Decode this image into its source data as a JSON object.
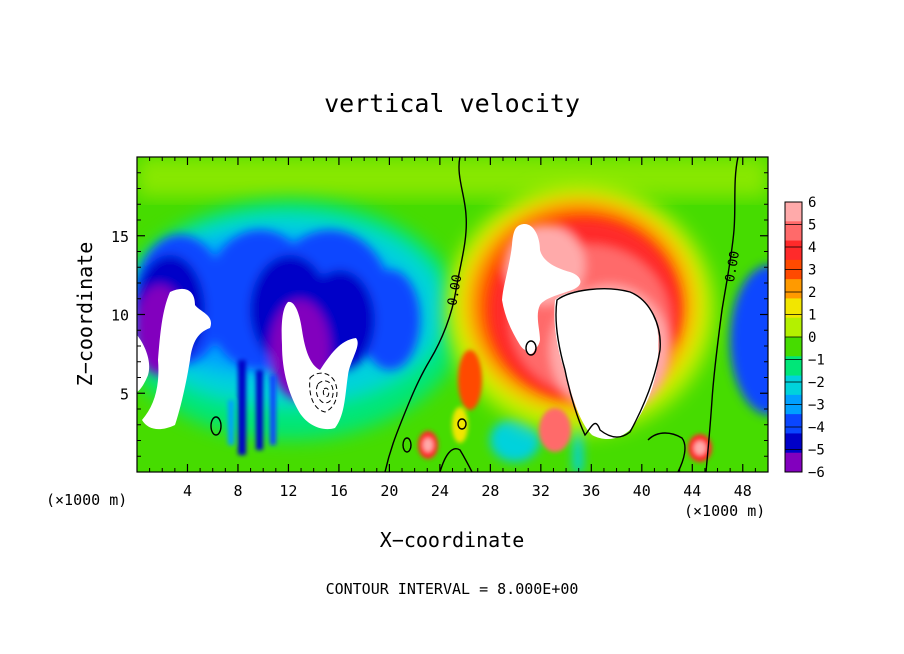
{
  "chart_data": {
    "type": "heatmap",
    "title": "vertical velocity",
    "xlabel": "X−coordinate",
    "ylabel": "Z−coordinate",
    "x_unit_left": "(×1000 m)",
    "x_unit_right": "(×1000 m)",
    "footer": "CONTOUR INTERVAL = 8.000E+00",
    "xlim": [
      0,
      50
    ],
    "ylim": [
      0,
      20
    ],
    "x_ticks": [
      4,
      8,
      12,
      16,
      20,
      24,
      28,
      32,
      36,
      40,
      44,
      48
    ],
    "y_ticks": [
      5,
      10,
      15
    ],
    "colorbar": {
      "levels": [
        6,
        5,
        4,
        3,
        2,
        1,
        0,
        -1,
        -2,
        -3,
        -4,
        -5,
        -6
      ],
      "labels": [
        "6",
        "5",
        "4",
        "3",
        "2",
        "1",
        "0",
        "−1",
        "−2",
        "−3",
        "−4",
        "−5",
        "−6"
      ],
      "colors": [
        "#ffaaaa",
        "#ff6a6a",
        "#ff2a2a",
        "#ff4a00",
        "#ff9a00",
        "#f2e600",
        "#b4f000",
        "#46dc00",
        "#00e678",
        "#00d2dc",
        "#00a0ff",
        "#0a46ff",
        "#0000c8",
        "#8200be"
      ],
      "above_max": "#ffffff"
    },
    "contour_labels": [
      {
        "text": "0.00",
        "x": 25.5,
        "y": 11.5
      },
      {
        "text": "0.00",
        "x": 47.5,
        "y": 13.0
      }
    ]
  }
}
